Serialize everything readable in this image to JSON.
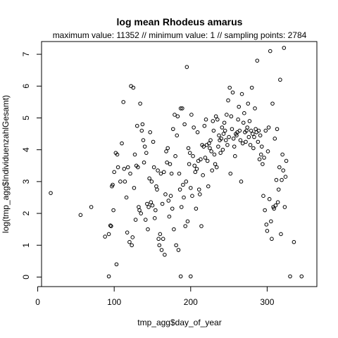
{
  "chart_data": {
    "type": "scatter",
    "title": "log mean Rhodeus amarus",
    "subtitle": "maximum value: 11352  //  minimum value: 1  // sampling points: 2784",
    "xlabel": "tmp_agg$day_of_year",
    "ylabel": "log(tmp_agg$IndividuenzahlGesamt)",
    "xlim": [
      5,
      365
    ],
    "ylim": [
      -0.3,
      7.4
    ],
    "x_ticks": [
      0,
      100,
      200,
      300
    ],
    "y_ticks": [
      0,
      1,
      2,
      3,
      4,
      5,
      6,
      7
    ],
    "grid": false,
    "point_style": "open-circle",
    "points": [
      [
        17,
        2.64
      ],
      [
        56,
        1.95
      ],
      [
        70,
        2.2
      ],
      [
        88,
        1.27
      ],
      [
        93,
        1.35
      ],
      [
        95,
        1.62
      ],
      [
        96,
        1.6
      ],
      [
        97,
        2.85
      ],
      [
        98,
        2.9
      ],
      [
        99,
        2.1
      ],
      [
        100,
        3.3
      ],
      [
        102,
        3.9
      ],
      [
        104,
        3.85
      ],
      [
        105,
        3.45
      ],
      [
        108,
        3.0
      ],
      [
        110,
        4.2
      ],
      [
        112,
        5.5
      ],
      [
        113,
        3.4
      ],
      [
        114,
        3.0
      ],
      [
        116,
        2.5
      ],
      [
        117,
        1.4
      ],
      [
        118,
        3.45
      ],
      [
        120,
        1.1
      ],
      [
        121,
        3.25
      ],
      [
        122,
        6.0
      ],
      [
        123,
        1.0
      ],
      [
        124,
        1.25
      ],
      [
        125,
        5.95
      ],
      [
        126,
        2.8
      ],
      [
        127,
        3.85
      ],
      [
        128,
        1.8
      ],
      [
        129,
        3.5
      ],
      [
        130,
        4.75
      ],
      [
        131,
        3.45
      ],
      [
        132,
        2.2
      ],
      [
        133,
        2.1
      ],
      [
        134,
        5.45
      ],
      [
        135,
        2.0
      ],
      [
        136,
        4.6
      ],
      [
        137,
        4.8
      ],
      [
        138,
        4.3
      ],
      [
        139,
        3.6
      ],
      [
        140,
        4.1
      ],
      [
        141,
        1.8
      ],
      [
        142,
        3.9
      ],
      [
        143,
        2.3
      ],
      [
        144,
        1.5
      ],
      [
        145,
        2.2
      ],
      [
        146,
        3.1
      ],
      [
        147,
        4.55
      ],
      [
        148,
        2.35
      ],
      [
        149,
        3.0
      ],
      [
        150,
        2.25
      ],
      [
        151,
        4.25
      ],
      [
        152,
        3.45
      ],
      [
        153,
        1.85
      ],
      [
        154,
        2.1
      ],
      [
        155,
        2.85
      ],
      [
        156,
        2.75
      ],
      [
        157,
        3.35
      ],
      [
        158,
        1.2
      ],
      [
        159,
        1.0
      ],
      [
        160,
        1.35
      ],
      [
        161,
        3.25
      ],
      [
        162,
        0.85
      ],
      [
        163,
        2.3
      ],
      [
        164,
        1.2
      ],
      [
        165,
        3.3
      ],
      [
        166,
        0.7
      ],
      [
        167,
        2.6
      ],
      [
        168,
        3.95
      ],
      [
        169,
        3.6
      ],
      [
        170,
        4.05
      ],
      [
        171,
        2.4
      ],
      [
        172,
        1.9
      ],
      [
        173,
        3.55
      ],
      [
        174,
        2.55
      ],
      [
        175,
        3.25
      ],
      [
        176,
        2.15
      ],
      [
        177,
        4.65
      ],
      [
        178,
        1.5
      ],
      [
        179,
        5.1
      ],
      [
        180,
        3.8
      ],
      [
        181,
        1.0
      ],
      [
        182,
        4.45
      ],
      [
        183,
        5.05
      ],
      [
        184,
        0.85
      ],
      [
        185,
        3.25
      ],
      [
        186,
        2.75
      ],
      [
        187,
        5.3
      ],
      [
        188,
        2.2
      ],
      [
        189,
        5.3
      ],
      [
        190,
        2.9
      ],
      [
        191,
        2.5
      ],
      [
        192,
        4.8
      ],
      [
        193,
        1.6
      ],
      [
        194,
        3.0
      ],
      [
        195,
        6.6
      ],
      [
        196,
        1.75
      ],
      [
        197,
        4.05
      ],
      [
        198,
        3.55
      ],
      [
        199,
        3.9
      ],
      [
        200,
        2.8
      ],
      [
        201,
        5.1
      ],
      [
        202,
        2.55
      ],
      [
        203,
        3.8
      ],
      [
        204,
        4.7
      ],
      [
        205,
        3.5
      ],
      [
        206,
        3.3
      ],
      [
        207,
        2.15
      ],
      [
        208,
        3.4
      ],
      [
        209,
        4.55
      ],
      [
        210,
        3.65
      ],
      [
        211,
        2.75
      ],
      [
        212,
        2.6
      ],
      [
        213,
        3.7
      ],
      [
        214,
        1.6
      ],
      [
        215,
        4.15
      ],
      [
        216,
        3.2
      ],
      [
        217,
        4.1
      ],
      [
        218,
        4.75
      ],
      [
        219,
        3.75
      ],
      [
        220,
        4.95
      ],
      [
        221,
        4.15
      ],
      [
        222,
        3.65
      ],
      [
        223,
        2.85
      ],
      [
        224,
        4.2
      ],
      [
        225,
        4.05
      ],
      [
        226,
        4.3
      ],
      [
        227,
        3.95
      ],
      [
        228,
        3.35
      ],
      [
        229,
        4.9
      ],
      [
        230,
        4.6
      ],
      [
        231,
        3.85
      ],
      [
        232,
        3.55
      ],
      [
        233,
        5.05
      ],
      [
        234,
        3.45
      ],
      [
        235,
        4.95
      ],
      [
        236,
        4.1
      ],
      [
        237,
        4.45
      ],
      [
        238,
        4.3
      ],
      [
        239,
        3.9
      ],
      [
        240,
        4.35
      ],
      [
        241,
        4.7
      ],
      [
        242,
        4.0
      ],
      [
        243,
        4.5
      ],
      [
        244,
        4.85
      ],
      [
        245,
        4.6
      ],
      [
        246,
        4.3
      ],
      [
        247,
        5.1
      ],
      [
        248,
        4.15
      ],
      [
        249,
        5.55
      ],
      [
        250,
        4.4
      ],
      [
        251,
        5.95
      ],
      [
        252,
        3.25
      ],
      [
        253,
        5.05
      ],
      [
        254,
        4.65
      ],
      [
        255,
        5.8
      ],
      [
        256,
        4.35
      ],
      [
        257,
        4.1
      ],
      [
        258,
        3.8
      ],
      [
        259,
        4.5
      ],
      [
        260,
        4.45
      ],
      [
        261,
        4.55
      ],
      [
        262,
        4.95
      ],
      [
        263,
        5.35
      ],
      [
        264,
        4.6
      ],
      [
        265,
        4.3
      ],
      [
        266,
        3.0
      ],
      [
        267,
        5.75
      ],
      [
        268,
        4.2
      ],
      [
        269,
        4.85
      ],
      [
        270,
        5.15
      ],
      [
        271,
        4.55
      ],
      [
        272,
        4.25
      ],
      [
        273,
        4.6
      ],
      [
        274,
        4.7
      ],
      [
        275,
        5.45
      ],
      [
        276,
        4.4
      ],
      [
        277,
        4.9
      ],
      [
        278,
        4.15
      ],
      [
        279,
        4.6
      ],
      [
        280,
        5.95
      ],
      [
        281,
        4.5
      ],
      [
        282,
        4.05
      ],
      [
        283,
        4.4
      ],
      [
        284,
        5.3
      ],
      [
        285,
        4.65
      ],
      [
        286,
        4.55
      ],
      [
        287,
        6.8
      ],
      [
        288,
        4.25
      ],
      [
        289,
        4.6
      ],
      [
        290,
        3.7
      ],
      [
        291,
        4.45
      ],
      [
        292,
        3.85
      ],
      [
        293,
        4.1
      ],
      [
        294,
        3.55
      ],
      [
        295,
        2.55
      ],
      [
        296,
        3.75
      ],
      [
        297,
        2.1
      ],
      [
        298,
        4.6
      ],
      [
        299,
        1.65
      ],
      [
        300,
        1.45
      ],
      [
        301,
        3.95
      ],
      [
        302,
        4.7
      ],
      [
        303,
        2.45
      ],
      [
        304,
        7.1
      ],
      [
        305,
        1.75
      ],
      [
        306,
        1.2
      ],
      [
        307,
        5.45
      ],
      [
        308,
        2.2
      ],
      [
        309,
        2.15
      ],
      [
        310,
        4.35
      ],
      [
        311,
        2.25
      ],
      [
        312,
        3.05
      ],
      [
        313,
        4.65
      ],
      [
        314,
        2.35
      ],
      [
        315,
        2.75
      ],
      [
        316,
        3.45
      ],
      [
        317,
        6.2
      ],
      [
        318,
        1.35
      ],
      [
        319,
        3.05
      ],
      [
        320,
        3.85
      ],
      [
        321,
        3.35
      ],
      [
        322,
        7.2
      ],
      [
        323,
        2.2
      ],
      [
        324,
        3.15
      ],
      [
        325,
        3.65
      ],
      [
        330,
        0.02
      ],
      [
        335,
        1.1
      ],
      [
        345,
        0.02
      ],
      [
        93,
        0.02
      ],
      [
        103,
        0.4
      ],
      [
        187,
        0.02
      ],
      [
        200,
        0.02
      ]
    ]
  }
}
